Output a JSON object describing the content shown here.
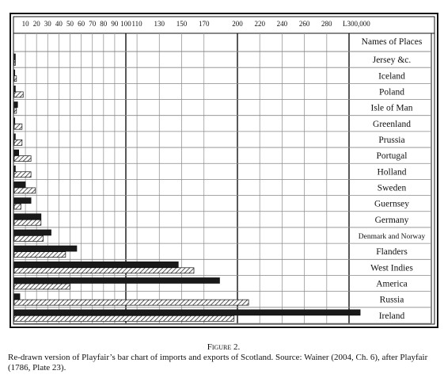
{
  "chart_data": {
    "type": "bar",
    "header": "Names of Places",
    "categories": [
      "Jersey &c.",
      "Iceland",
      "Poland",
      "Isle of Man",
      "Greenland",
      "Prussia",
      "Portugal",
      "Holland",
      "Sweden",
      "Guernsey",
      "Germany",
      "Denmark and Norway",
      "Flanders",
      "West Indies",
      "America",
      "Russia",
      "Ireland"
    ],
    "series": [
      {
        "color": "#1a1a1a",
        "values": [
          1,
          0.5,
          1,
          3,
          0.5,
          1,
          4,
          1,
          10,
          15,
          24,
          33,
          56,
          147,
          184,
          5,
          310
        ]
      },
      {
        "color": "#777777",
        "pattern": "hatch",
        "values": [
          1,
          2,
          8,
          2,
          7,
          7,
          15,
          15,
          19,
          6,
          24,
          26,
          46,
          161,
          50,
          210,
          197
        ]
      }
    ],
    "xlim": [
      0,
      300
    ],
    "xticks": [
      10,
      20,
      30,
      40,
      50,
      60,
      70,
      80,
      90,
      100,
      110,
      130,
      150,
      170,
      200,
      220,
      240,
      260,
      280,
      {
        "value": 300,
        "label": "L300,000"
      }
    ],
    "grid": true
  },
  "caption": {
    "figure": "Figure 2.",
    "text": "Re-drawn version of Playfair’s bar chart of imports and exports of Scotland. Source: Wainer (2004, Ch. 6), after Playfair (1786, Plate 23)."
  }
}
